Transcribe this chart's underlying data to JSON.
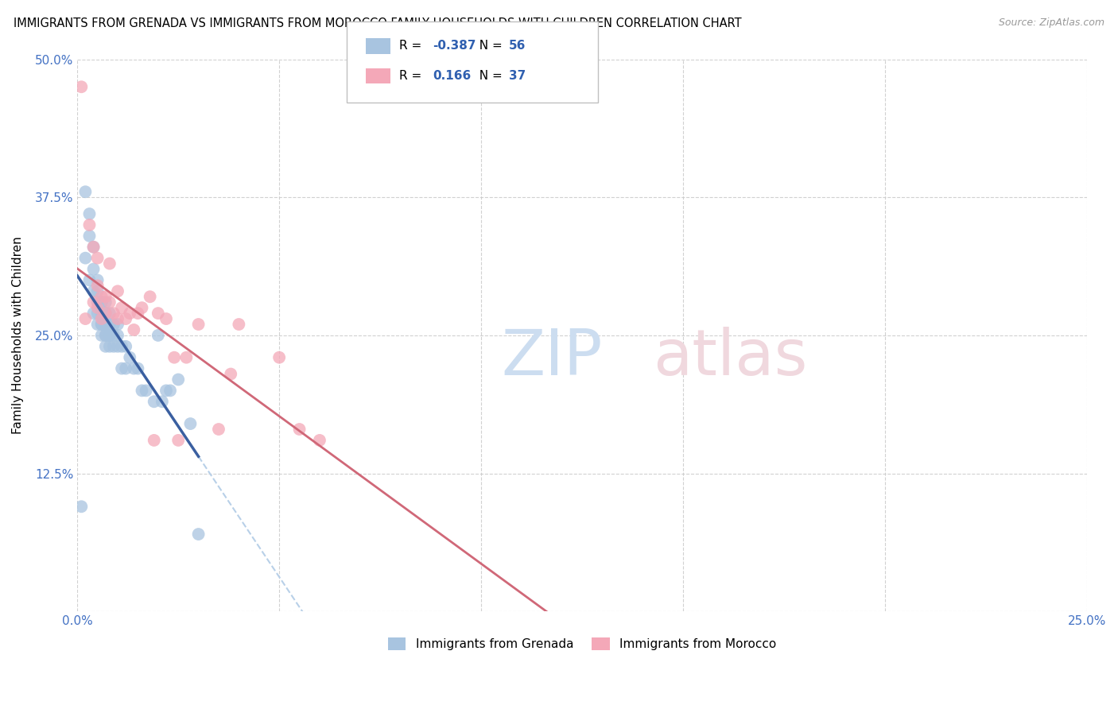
{
  "title": "IMMIGRANTS FROM GRENADA VS IMMIGRANTS FROM MOROCCO FAMILY HOUSEHOLDS WITH CHILDREN CORRELATION CHART",
  "source": "Source: ZipAtlas.com",
  "ylabel": "Family Households with Children",
  "xlim": [
    0,
    0.25
  ],
  "ylim": [
    0,
    0.5
  ],
  "grenada_R": -0.387,
  "grenada_N": 56,
  "morocco_R": 0.166,
  "morocco_N": 37,
  "grenada_color": "#a8c4e0",
  "morocco_color": "#f4a8b8",
  "grenada_line_color": "#3a5fa0",
  "morocco_line_color": "#d06878",
  "dashed_line_color": "#b8d0e8",
  "legend_label_grenada": "Immigrants from Grenada",
  "legend_label_morocco": "Immigrants from Morocco",
  "grenada_x": [
    0.001,
    0.002,
    0.002,
    0.003,
    0.003,
    0.003,
    0.004,
    0.004,
    0.004,
    0.004,
    0.005,
    0.005,
    0.005,
    0.005,
    0.005,
    0.006,
    0.006,
    0.006,
    0.006,
    0.006,
    0.006,
    0.007,
    0.007,
    0.007,
    0.007,
    0.007,
    0.007,
    0.007,
    0.008,
    0.008,
    0.008,
    0.008,
    0.008,
    0.009,
    0.009,
    0.009,
    0.01,
    0.01,
    0.01,
    0.011,
    0.011,
    0.012,
    0.012,
    0.013,
    0.014,
    0.015,
    0.016,
    0.017,
    0.019,
    0.02,
    0.021,
    0.022,
    0.023,
    0.025,
    0.028,
    0.03
  ],
  "grenada_y": [
    0.095,
    0.38,
    0.32,
    0.36,
    0.3,
    0.34,
    0.31,
    0.29,
    0.33,
    0.27,
    0.3,
    0.28,
    0.26,
    0.27,
    0.29,
    0.26,
    0.27,
    0.28,
    0.25,
    0.26,
    0.28,
    0.25,
    0.26,
    0.27,
    0.24,
    0.25,
    0.26,
    0.28,
    0.25,
    0.26,
    0.27,
    0.24,
    0.25,
    0.25,
    0.26,
    0.24,
    0.25,
    0.24,
    0.26,
    0.24,
    0.22,
    0.24,
    0.22,
    0.23,
    0.22,
    0.22,
    0.2,
    0.2,
    0.19,
    0.25,
    0.19,
    0.2,
    0.2,
    0.21,
    0.17,
    0.07
  ],
  "morocco_x": [
    0.001,
    0.002,
    0.003,
    0.004,
    0.004,
    0.005,
    0.005,
    0.005,
    0.006,
    0.006,
    0.007,
    0.007,
    0.008,
    0.008,
    0.009,
    0.01,
    0.01,
    0.011,
    0.012,
    0.013,
    0.014,
    0.015,
    0.016,
    0.018,
    0.019,
    0.02,
    0.022,
    0.024,
    0.025,
    0.027,
    0.03,
    0.035,
    0.038,
    0.04,
    0.05,
    0.055,
    0.06
  ],
  "morocco_y": [
    0.475,
    0.265,
    0.35,
    0.33,
    0.28,
    0.275,
    0.295,
    0.32,
    0.285,
    0.265,
    0.27,
    0.285,
    0.28,
    0.315,
    0.27,
    0.265,
    0.29,
    0.275,
    0.265,
    0.27,
    0.255,
    0.27,
    0.275,
    0.285,
    0.155,
    0.27,
    0.265,
    0.23,
    0.155,
    0.23,
    0.26,
    0.165,
    0.215,
    0.26,
    0.23,
    0.165,
    0.155
  ]
}
